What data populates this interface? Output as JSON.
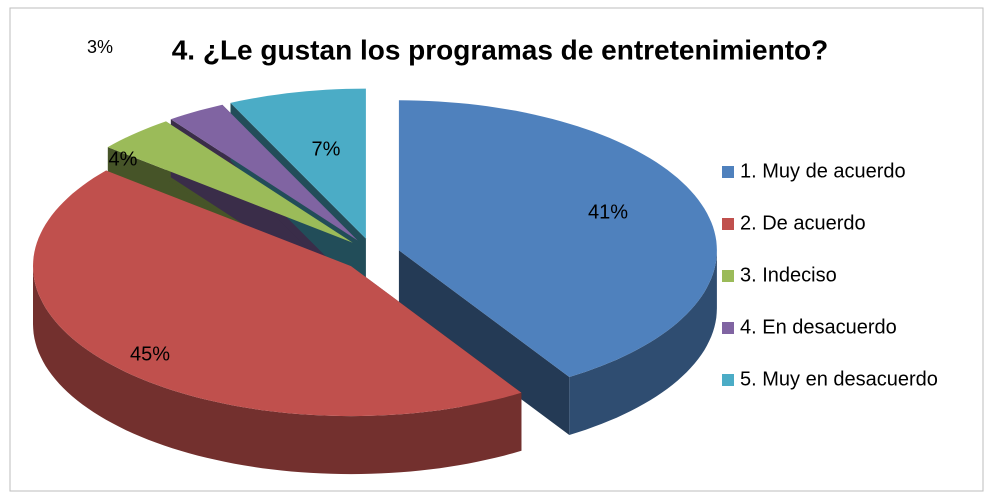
{
  "chart_data": {
    "type": "pie3d",
    "title": "4. ¿Le gustan los programas de entretenimiento?",
    "categories": [
      "1. Muy de acuerdo",
      "2. De acuerdo",
      "3. Indeciso",
      "4. En desacuerdo",
      "5. Muy en desacuerdo"
    ],
    "values": [
      41,
      45,
      4,
      3,
      7
    ],
    "value_labels": [
      "41%",
      "45%",
      "4%",
      "3%",
      "7%"
    ],
    "colors": [
      "#4f81bd",
      "#c0504d",
      "#9bbb59",
      "#8064a2",
      "#4bacc6"
    ],
    "legend": "right"
  }
}
